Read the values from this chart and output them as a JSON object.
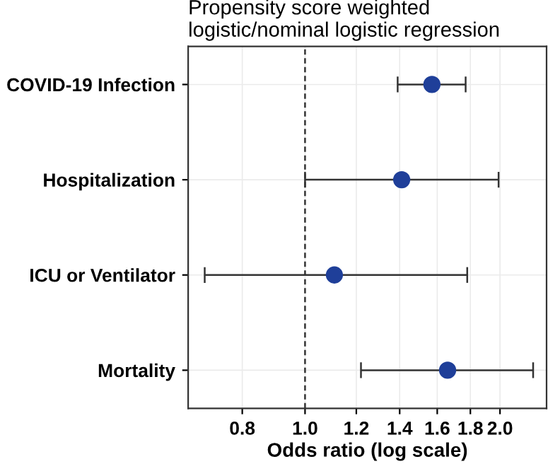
{
  "chart_data": {
    "type": "scatter",
    "orientation": "horizontal",
    "title": "Propensity score weighted\nlogistic/nominal logistic regression",
    "xlabel": "Odds ratio (log scale)",
    "categories": [
      "COVID-19 Infection",
      "Hospitalization",
      "ICU or Ventilator",
      "Mortality"
    ],
    "values": [
      1.57,
      1.41,
      1.11,
      1.66
    ],
    "errors": [
      [
        1.39,
        1.77
      ],
      [
        1.0,
        1.99
      ],
      [
        0.7,
        1.78
      ],
      [
        1.22,
        2.25
      ]
    ],
    "color": "#1f3f99",
    "log": "x",
    "xlim": [
      0.66,
      2.36
    ],
    "xticks": [
      0.8,
      {
        "value": 1,
        "label": "1.0"
      },
      1.2,
      1.4,
      1.6,
      1.8,
      {
        "value": 2,
        "label": "2.0"
      }
    ],
    "ref_lines": [
      {
        "axis": "x",
        "value": 1.0,
        "line_style": "dashed",
        "color": "#333333"
      }
    ],
    "grid": true,
    "marker": "circle"
  }
}
